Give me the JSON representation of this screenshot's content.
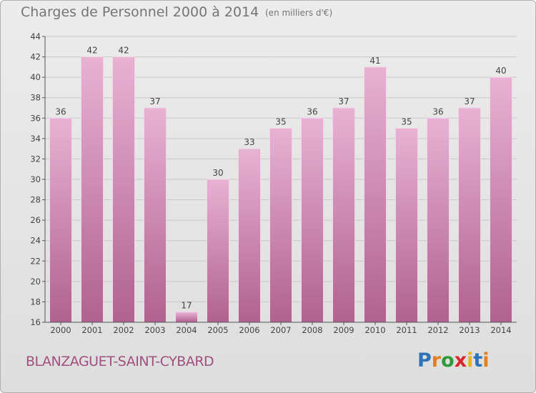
{
  "header": {
    "title": "Charges de Personnel 2000 à 2014",
    "unit": "(en milliers d'€)"
  },
  "footer": {
    "commune": "BLANZAGUET-SAINT-CYBARD",
    "logo": {
      "letters": [
        "P",
        "r",
        "o",
        "x",
        "i",
        "t",
        "i"
      ],
      "colors": [
        "#2f73b7",
        "#e2801e",
        "#2f9a3a",
        "#d8262c",
        "#e9b31b",
        "#2f73b7",
        "#e2801e"
      ]
    }
  },
  "colors": {
    "bar_top": "#e8b2d3",
    "bar_bottom": "#b0628e",
    "bar_edge": "#f4d4e8",
    "axis": "#555555",
    "grid": "#c8c8c8",
    "text": "#444444"
  },
  "chart_data": {
    "type": "bar",
    "categories": [
      "2000",
      "2001",
      "2002",
      "2003",
      "2004",
      "2005",
      "2006",
      "2007",
      "2008",
      "2009",
      "2010",
      "2011",
      "2012",
      "2013",
      "2014"
    ],
    "values": [
      36,
      42,
      42,
      37,
      17,
      30,
      33,
      35,
      36,
      37,
      41,
      35,
      36,
      37,
      40
    ],
    "data_labels": [
      "36",
      "42",
      "42",
      "37",
      "17",
      "30",
      "33",
      "35",
      "36",
      "37",
      "41",
      "35",
      "36",
      "37",
      "40"
    ],
    "ylim": [
      16,
      44
    ],
    "yticks": [
      16,
      18,
      20,
      22,
      24,
      26,
      28,
      30,
      32,
      34,
      36,
      38,
      40,
      42,
      44
    ],
    "ytick_labels": [
      "16",
      "18",
      "20",
      "22",
      "24",
      "26",
      "28",
      "30",
      "32",
      "34",
      "36",
      "38",
      "40",
      "42",
      "44"
    ],
    "grid": true,
    "legend": "none",
    "title": "Charges de Personnel 2000 à 2014",
    "xlabel": "",
    "ylabel": ""
  }
}
